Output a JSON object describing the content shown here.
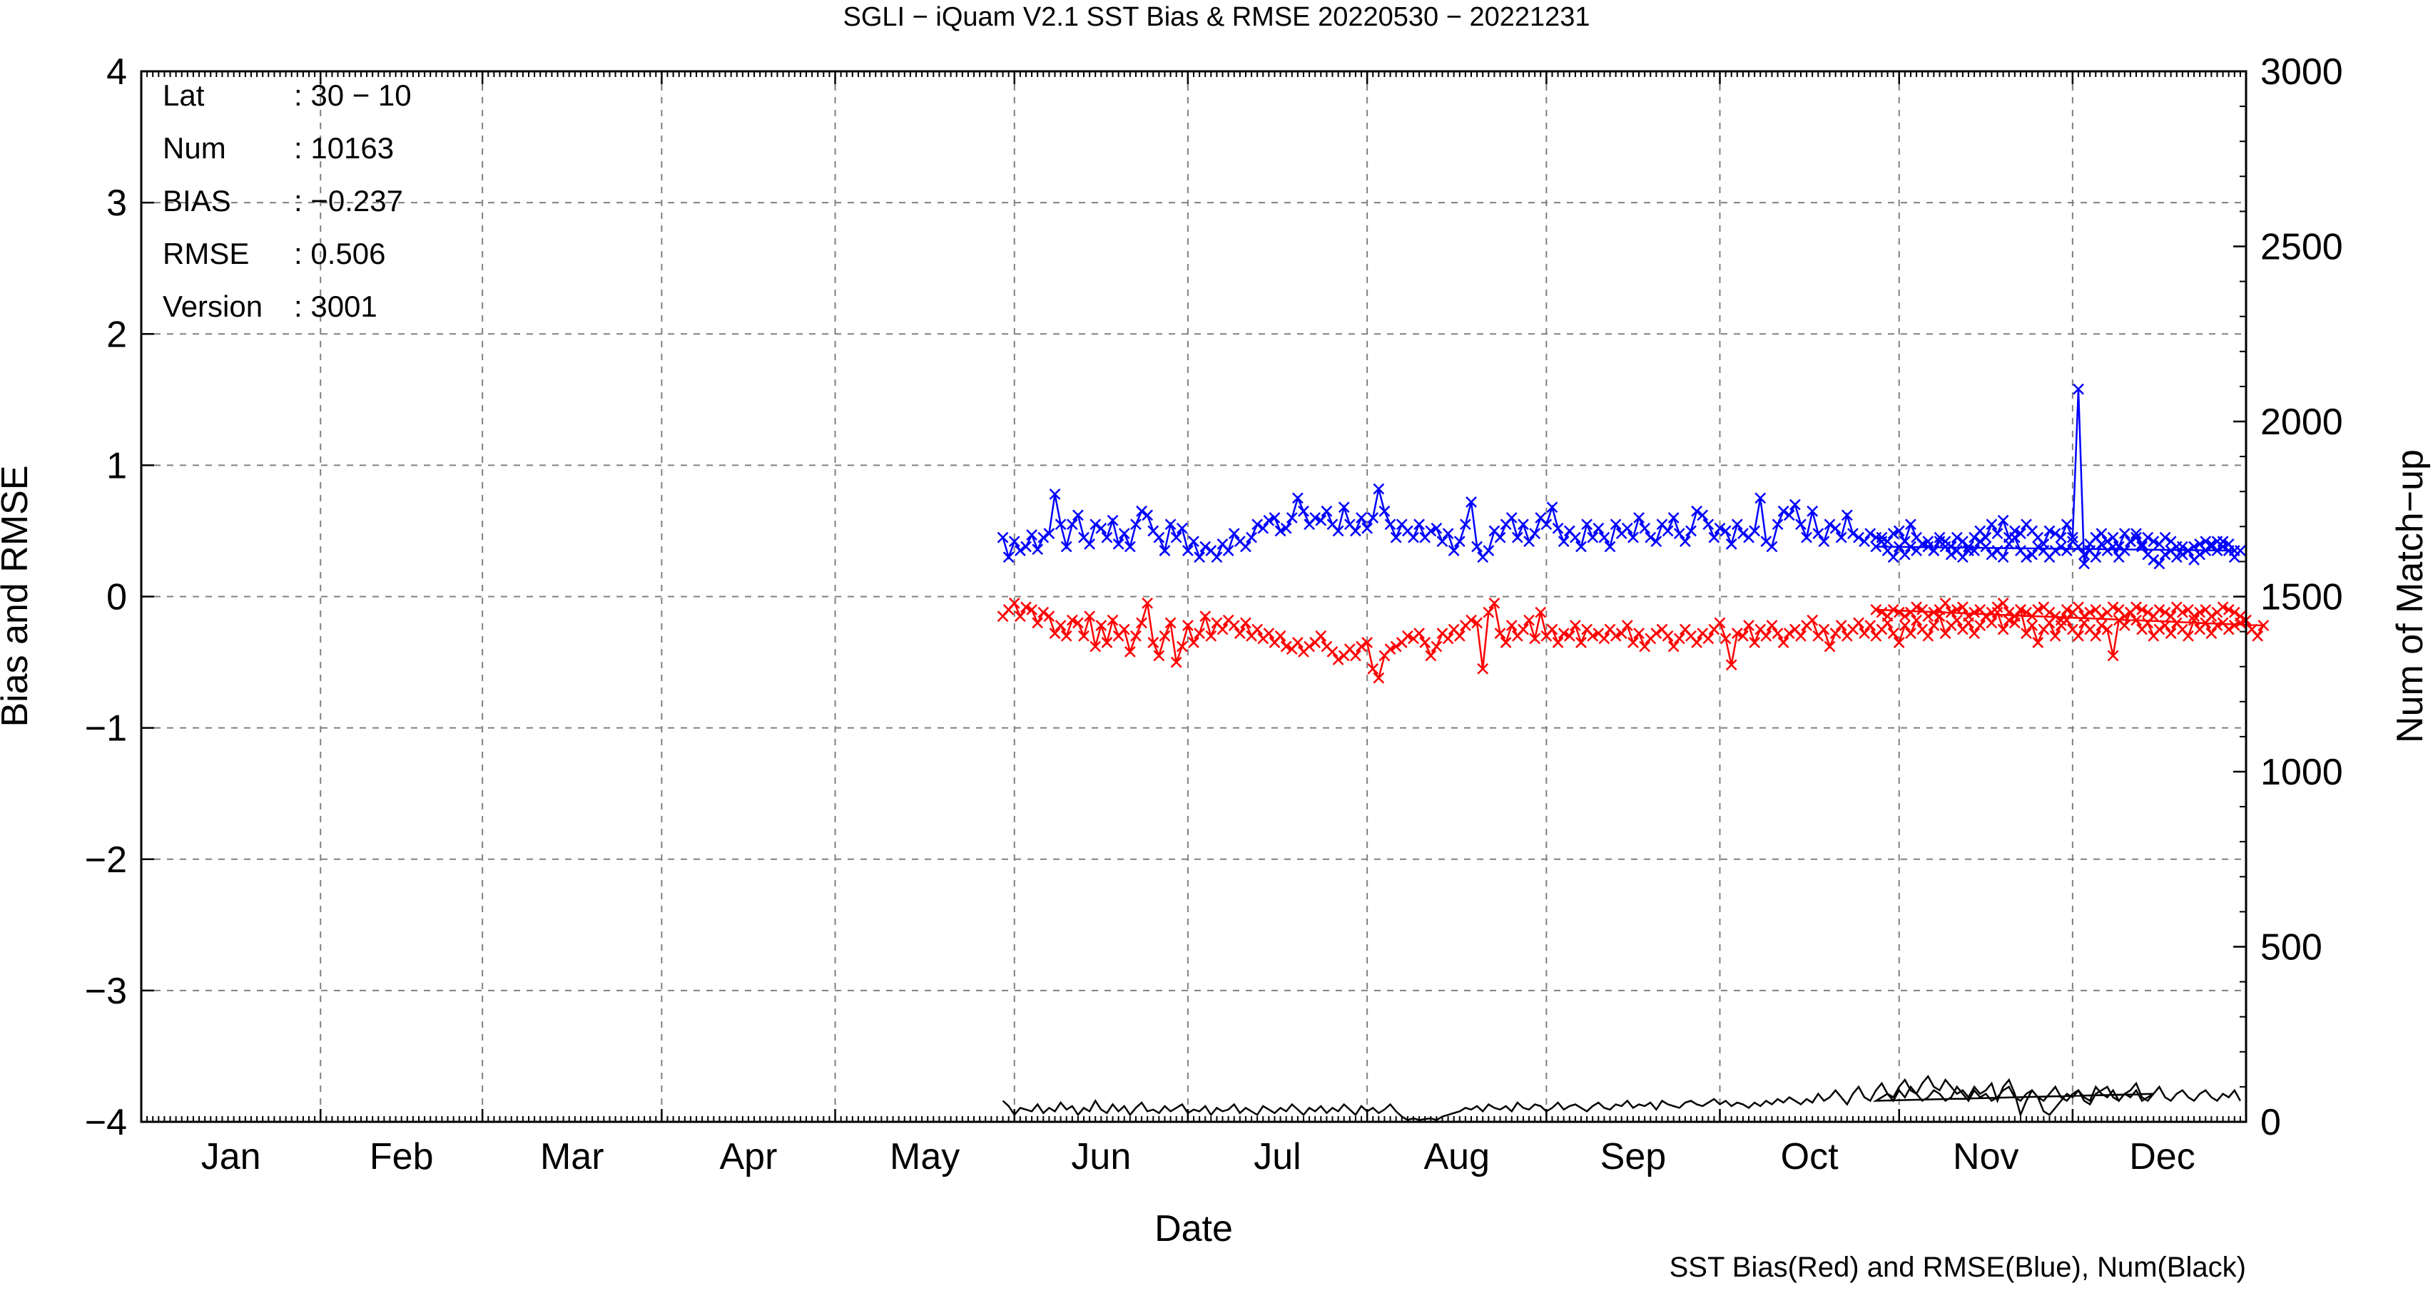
{
  "chart_data": {
    "type": "line",
    "title": "SGLI − iQuam V2.1 SST Bias & RMSE 20220530 − 20221231",
    "xlabel": "Date",
    "ylabel": "Bias and RMSE",
    "y2label": "Num of Match−up",
    "footnote": "SST Bias(Red) and RMSE(Blue), Num(Black)",
    "x_axis": {
      "type": "date",
      "range": [
        "2022-01-01",
        "2022-12-31"
      ],
      "month_labels": [
        "Jan",
        "Feb",
        "Mar",
        "Apr",
        "May",
        "Jun",
        "Jul",
        "Aug",
        "Sep",
        "Oct",
        "Nov",
        "Dec"
      ]
    },
    "ylim": [
      -4,
      4
    ],
    "y_ticks": [
      -4,
      -3,
      -2,
      -1,
      0,
      1,
      2,
      3,
      4
    ],
    "y2lim": [
      0,
      3000
    ],
    "y2_ticks": [
      0,
      500,
      1000,
      1500,
      2000,
      2500,
      3000
    ],
    "grid": true,
    "info_box": [
      {
        "key": "Lat",
        "value": ": 30 − 10"
      },
      {
        "key": "Num",
        "value": ": 10163"
      },
      {
        "key": "BIAS",
        "value": ": −0.237"
      },
      {
        "key": "RMSE",
        "value": ": 0.506"
      },
      {
        "key": "Version",
        "value": ": 3001"
      }
    ],
    "series": [
      {
        "name": "RMSE",
        "color": "#0000ff",
        "axis": "left",
        "marker": "x",
        "start": "2022-05-30",
        "values": [
          0.45,
          0.3,
          0.42,
          0.35,
          0.38,
          0.47,
          0.36,
          0.45,
          0.48,
          0.78,
          0.55,
          0.38,
          0.55,
          0.62,
          0.45,
          0.4,
          0.55,
          0.52,
          0.45,
          0.58,
          0.4,
          0.48,
          0.38,
          0.55,
          0.65,
          0.62,
          0.5,
          0.45,
          0.35,
          0.55,
          0.45,
          0.52,
          0.35,
          0.42,
          0.3,
          0.38,
          0.35,
          0.3,
          0.4,
          0.35,
          0.48,
          0.42,
          0.38,
          0.45,
          0.55,
          0.52,
          0.58,
          0.6,
          0.5,
          0.52,
          0.6,
          0.75,
          0.65,
          0.55,
          0.6,
          0.58,
          0.65,
          0.55,
          0.5,
          0.68,
          0.55,
          0.5,
          0.6,
          0.52,
          0.6,
          0.82,
          0.65,
          0.55,
          0.45,
          0.55,
          0.5,
          0.45,
          0.55,
          0.45,
          0.5,
          0.52,
          0.42,
          0.48,
          0.35,
          0.42,
          0.55,
          0.72,
          0.38,
          0.3,
          0.35,
          0.5,
          0.45,
          0.55,
          0.6,
          0.45,
          0.55,
          0.42,
          0.48,
          0.6,
          0.55,
          0.68,
          0.52,
          0.42,
          0.5,
          0.45,
          0.38,
          0.55,
          0.45,
          0.52,
          0.45,
          0.38,
          0.55,
          0.48,
          0.52,
          0.45,
          0.6,
          0.52,
          0.45,
          0.42,
          0.55,
          0.5,
          0.6,
          0.48,
          0.42,
          0.5,
          0.65,
          0.62,
          0.55,
          0.45,
          0.52,
          0.5,
          0.4,
          0.55,
          0.48,
          0.45,
          0.5,
          0.75,
          0.42,
          0.38,
          0.55,
          0.65,
          0.62,
          0.7,
          0.55,
          0.45,
          0.65,
          0.48,
          0.42,
          0.55,
          0.52,
          0.45,
          0.62,
          0.48,
          0.45,
          0.42,
          0.48,
          0.45,
          0.45,
          0.42,
          0.48,
          0.5,
          0.42,
          0.55,
          0.45,
          0.4,
          0.42,
          0.35,
          0.45,
          0.42,
          0.38,
          0.45,
          0.42,
          0.35,
          0.45,
          0.5,
          0.45,
          0.55,
          0.48,
          0.58,
          0.45,
          0.5,
          0.48,
          0.55,
          0.5,
          0.45,
          0.4,
          0.5,
          0.48,
          0.45,
          0.55,
          0.45,
          1.58,
          0.25,
          0.4,
          0.45,
          0.48,
          0.42,
          0.45,
          0.38,
          0.48,
          0.42,
          0.45,
          0.38,
          0.45,
          0.42,
          0.4,
          0.45,
          0.42,
          0.38,
          0.32,
          0.35,
          0.38,
          0.4,
          0.42,
          0.38,
          0.35,
          0.42,
          0.4,
          0.35
        ],
        "gap_after_index": 202,
        "resume": "2022-10-28",
        "values_after_gap": [
          0.38,
          0.42,
          0.35,
          0.3,
          0.38,
          0.32,
          0.38,
          0.35,
          0.4,
          0.38,
          0.35,
          0.42,
          0.38,
          0.32,
          0.35,
          0.3,
          0.38,
          0.35,
          0.42,
          0.38,
          0.32,
          0.35,
          0.3,
          0.4,
          0.45,
          0.35,
          0.3,
          0.32,
          0.38,
          0.35,
          0.3,
          0.35,
          0.38,
          0.35,
          0.42,
          0.38,
          0.32,
          0.35,
          0.3,
          0.4,
          0.35,
          0.38,
          0.3,
          0.35,
          0.42,
          0.48,
          0.4,
          0.32,
          0.28,
          0.25,
          0.32,
          0.35,
          0.3,
          0.38,
          0.35,
          0.28,
          0.32,
          0.35,
          0.4,
          0.42,
          0.38,
          0.35,
          0.3,
          0.35
        ]
      },
      {
        "name": "BIAS",
        "color": "#ff0000",
        "axis": "left",
        "marker": "x",
        "start": "2022-05-30",
        "values": [
          -0.15,
          -0.1,
          -0.05,
          -0.15,
          -0.08,
          -0.1,
          -0.2,
          -0.12,
          -0.15,
          -0.28,
          -0.22,
          -0.3,
          -0.18,
          -0.2,
          -0.3,
          -0.15,
          -0.38,
          -0.22,
          -0.35,
          -0.18,
          -0.3,
          -0.25,
          -0.42,
          -0.3,
          -0.2,
          -0.05,
          -0.35,
          -0.45,
          -0.3,
          -0.2,
          -0.5,
          -0.38,
          -0.22,
          -0.35,
          -0.28,
          -0.15,
          -0.3,
          -0.2,
          -0.25,
          -0.18,
          -0.22,
          -0.28,
          -0.2,
          -0.3,
          -0.25,
          -0.32,
          -0.28,
          -0.35,
          -0.3,
          -0.38,
          -0.4,
          -0.35,
          -0.42,
          -0.38,
          -0.35,
          -0.3,
          -0.38,
          -0.42,
          -0.48,
          -0.45,
          -0.4,
          -0.45,
          -0.38,
          -0.35,
          -0.55,
          -0.62,
          -0.45,
          -0.4,
          -0.38,
          -0.35,
          -0.3,
          -0.32,
          -0.28,
          -0.35,
          -0.45,
          -0.38,
          -0.28,
          -0.32,
          -0.25,
          -0.3,
          -0.22,
          -0.18,
          -0.2,
          -0.55,
          -0.12,
          -0.05,
          -0.28,
          -0.35,
          -0.22,
          -0.3,
          -0.25,
          -0.18,
          -0.32,
          -0.12,
          -0.3,
          -0.25,
          -0.35,
          -0.28,
          -0.3,
          -0.22,
          -0.35,
          -0.25,
          -0.3,
          -0.28,
          -0.32,
          -0.25,
          -0.3,
          -0.28,
          -0.22,
          -0.35,
          -0.28,
          -0.38,
          -0.32,
          -0.28,
          -0.25,
          -0.3,
          -0.38,
          -0.32,
          -0.25,
          -0.3,
          -0.35,
          -0.28,
          -0.32,
          -0.25,
          -0.2,
          -0.32,
          -0.52,
          -0.28,
          -0.3,
          -0.22,
          -0.35,
          -0.25,
          -0.3,
          -0.22,
          -0.28,
          -0.35,
          -0.28,
          -0.25,
          -0.3,
          -0.22,
          -0.18,
          -0.3,
          -0.25,
          -0.38,
          -0.28,
          -0.22,
          -0.3,
          -0.25,
          -0.2,
          -0.28,
          -0.22,
          -0.3,
          -0.25,
          -0.2,
          -0.28,
          -0.35,
          -0.22,
          -0.28,
          -0.18,
          -0.25,
          -0.3,
          -0.22,
          -0.15,
          -0.28,
          -0.22,
          -0.18,
          -0.25,
          -0.2,
          -0.28,
          -0.22,
          -0.15,
          -0.2,
          -0.12,
          -0.25,
          -0.18,
          -0.2,
          -0.1,
          -0.28,
          -0.22,
          -0.35,
          -0.25,
          -0.2,
          -0.3,
          -0.22,
          -0.18,
          -0.25,
          -0.3,
          -0.2,
          -0.25,
          -0.3,
          -0.22,
          -0.25,
          -0.45,
          -0.18,
          -0.22,
          -0.12,
          -0.18,
          -0.25,
          -0.2,
          -0.3,
          -0.25,
          -0.22,
          -0.28,
          -0.2,
          -0.25,
          -0.3,
          -0.18,
          -0.25,
          -0.2,
          -0.28,
          -0.22,
          -0.2,
          -0.25,
          -0.22,
          -0.2,
          -0.18,
          -0.25,
          -0.3,
          -0.22
        ],
        "values_after_gap": [
          -0.1,
          -0.12,
          -0.15,
          -0.1,
          -0.12,
          -0.15,
          -0.12,
          -0.08,
          -0.1,
          -0.15,
          -0.12,
          -0.1,
          -0.05,
          -0.12,
          -0.1,
          -0.08,
          -0.15,
          -0.12,
          -0.1,
          -0.15,
          -0.12,
          -0.08,
          -0.05,
          -0.12,
          -0.15,
          -0.1,
          -0.12,
          -0.15,
          -0.1,
          -0.08,
          -0.12,
          -0.15,
          -0.18,
          -0.1,
          -0.12,
          -0.08,
          -0.15,
          -0.12,
          -0.1,
          -0.15,
          -0.12,
          -0.08,
          -0.1,
          -0.15,
          -0.12,
          -0.08,
          -0.1,
          -0.12,
          -0.15,
          -0.1,
          -0.12,
          -0.15,
          -0.08,
          -0.12,
          -0.1,
          -0.15,
          -0.12,
          -0.1,
          -0.15,
          -0.12,
          -0.08,
          -0.1,
          -0.12,
          -0.15
        ]
      },
      {
        "name": "Num",
        "color": "#000000",
        "axis": "right",
        "marker": "none",
        "start": "2022-05-30",
        "values": [
          60,
          45,
          20,
          40,
          35,
          30,
          50,
          25,
          40,
          30,
          55,
          35,
          45,
          20,
          40,
          30,
          60,
          35,
          25,
          50,
          30,
          45,
          20,
          40,
          55,
          30,
          35,
          25,
          45,
          30,
          40,
          50,
          25,
          35,
          30,
          45,
          20,
          40,
          30,
          35,
          50,
          25,
          40,
          30,
          20,
          45,
          35,
          25,
          40,
          30,
          50,
          35,
          20,
          40,
          30,
          45,
          25,
          40,
          30,
          50,
          35,
          20,
          45,
          30,
          40,
          25,
          35,
          50,
          30,
          15,
          5,
          10,
          5,
          8,
          10,
          5,
          15,
          20,
          25,
          30,
          40,
          35,
          45,
          30,
          50,
          40,
          35,
          45,
          30,
          55,
          40,
          35,
          50,
          45,
          30,
          40,
          55,
          35,
          45,
          50,
          40,
          30,
          45,
          55,
          40,
          35,
          50,
          45,
          60,
          40,
          50,
          45,
          55,
          35,
          60,
          50,
          45,
          40,
          55,
          60,
          50,
          45,
          55,
          65,
          50,
          60,
          45,
          55,
          50,
          40,
          55,
          45,
          60,
          50,
          65,
          55,
          70,
          60,
          50,
          65,
          55,
          80,
          60,
          70,
          90,
          70,
          50,
          80,
          100,
          70,
          60,
          90,
          110,
          80,
          70,
          100,
          120,
          90,
          80,
          110,
          130,
          100,
          90,
          120,
          100,
          80,
          90,
          70,
          100,
          80,
          90,
          110,
          60,
          100,
          120,
          80,
          20,
          60,
          90,
          70,
          30,
          20,
          40,
          60,
          80,
          70,
          90,
          60,
          50,
          80,
          90,
          100,
          70,
          60,
          80,
          90,
          110,
          70,
          60,
          80
        ],
        "values_after_gap": [
          60,
          70,
          80,
          60,
          90,
          70,
          100,
          80,
          60,
          70,
          90,
          80,
          60,
          70,
          100,
          80,
          60,
          90,
          70,
          80,
          60,
          70,
          90,
          100,
          70,
          60,
          80,
          90,
          70,
          60,
          80,
          100,
          70,
          60,
          80,
          90,
          70,
          60,
          100,
          80,
          70,
          90,
          60,
          80,
          70,
          90,
          60,
          70,
          80,
          100,
          70,
          60,
          80,
          90,
          70,
          60,
          80,
          90,
          70,
          60,
          80,
          70,
          90,
          60
        ]
      }
    ]
  }
}
